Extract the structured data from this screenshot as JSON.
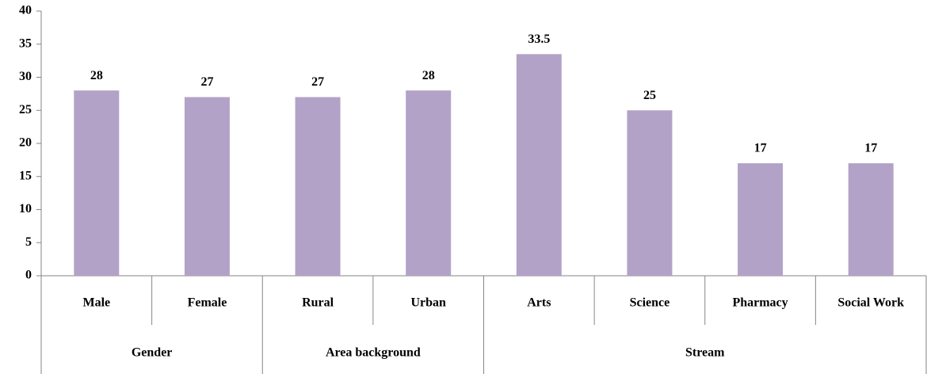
{
  "chart_data": {
    "type": "bar",
    "color": "#b3a2c7",
    "groups": [
      {
        "name": "Gender",
        "categories": [
          "Male",
          "Female"
        ],
        "values": [
          28,
          27
        ]
      },
      {
        "name": "Area background",
        "categories": [
          "Rural",
          "Urban"
        ],
        "values": [
          27,
          28
        ]
      },
      {
        "name": "Stream",
        "categories": [
          "Arts",
          "Science",
          "Pharmacy",
          "Social Work"
        ],
        "values": [
          33.5,
          25,
          17,
          17
        ]
      }
    ],
    "ylim": [
      0,
      40
    ],
    "yticks": [
      0,
      5,
      10,
      15,
      20,
      25,
      30,
      35,
      40
    ],
    "grid": false
  }
}
